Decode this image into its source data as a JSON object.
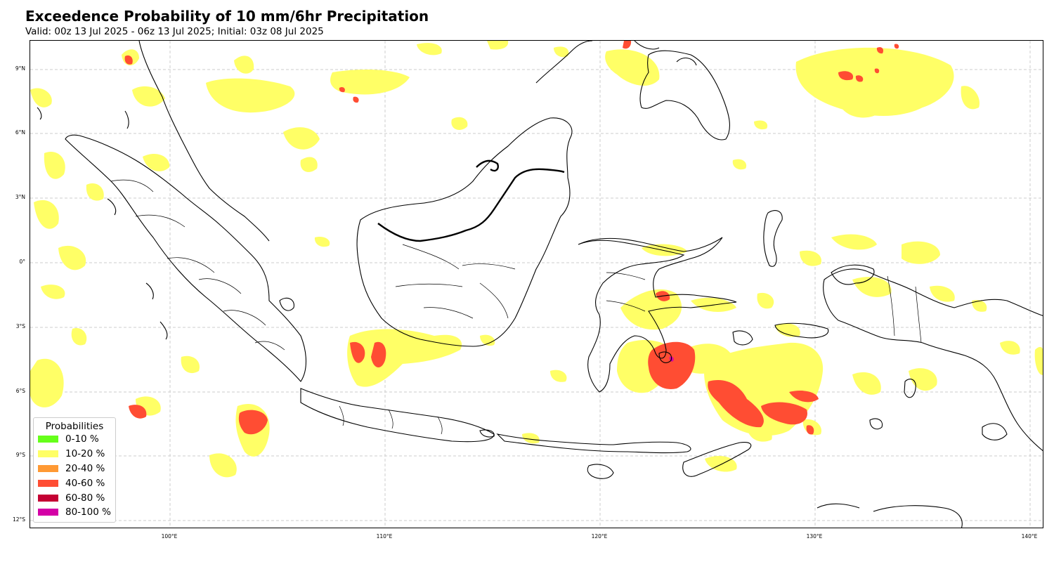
{
  "title": "Exceedence Probability of 10 mm/6hr Precipitation",
  "subtitle": "Valid: 00z 13 Jul 2025 - 06z 13 Jul 2025; Initial: 03z 08 Jul 2025",
  "axes": {
    "lat_ticks": [
      "9°N",
      "6°N",
      "3°N",
      "0°",
      "3°S",
      "6°S",
      "9°S",
      "12°S"
    ],
    "lon_ticks": [
      "100°E",
      "110°E",
      "120°E",
      "130°E",
      "140°E"
    ],
    "lat_values": [
      9,
      6,
      3,
      0,
      -3,
      -6,
      -9,
      -12
    ],
    "lon_values": [
      100,
      110,
      120,
      130,
      140
    ],
    "lon_range": [
      93.5,
      140.7
    ],
    "lat_range": [
      10.3,
      -12.4
    ],
    "gridlines": true
  },
  "legend": {
    "title": "Probabilities",
    "placement": "lower-left",
    "items": [
      {
        "label": "0-10 %",
        "color": "#66ff1a"
      },
      {
        "label": "10-20 %",
        "color": "#ffff66"
      },
      {
        "label": "20-40 %",
        "color": "#ff9933"
      },
      {
        "label": "40-60 %",
        "color": "#ff4d33"
      },
      {
        "label": "60-80 %",
        "color": "#c40033"
      },
      {
        "label": "80-100 %",
        "color": "#d400a6"
      }
    ]
  },
  "colors": {
    "p10_20": "#ffff66",
    "p40_60": "#ff4d33",
    "p80_100": "#d400a6",
    "coast": "#000000",
    "grid": "#cccccc"
  }
}
